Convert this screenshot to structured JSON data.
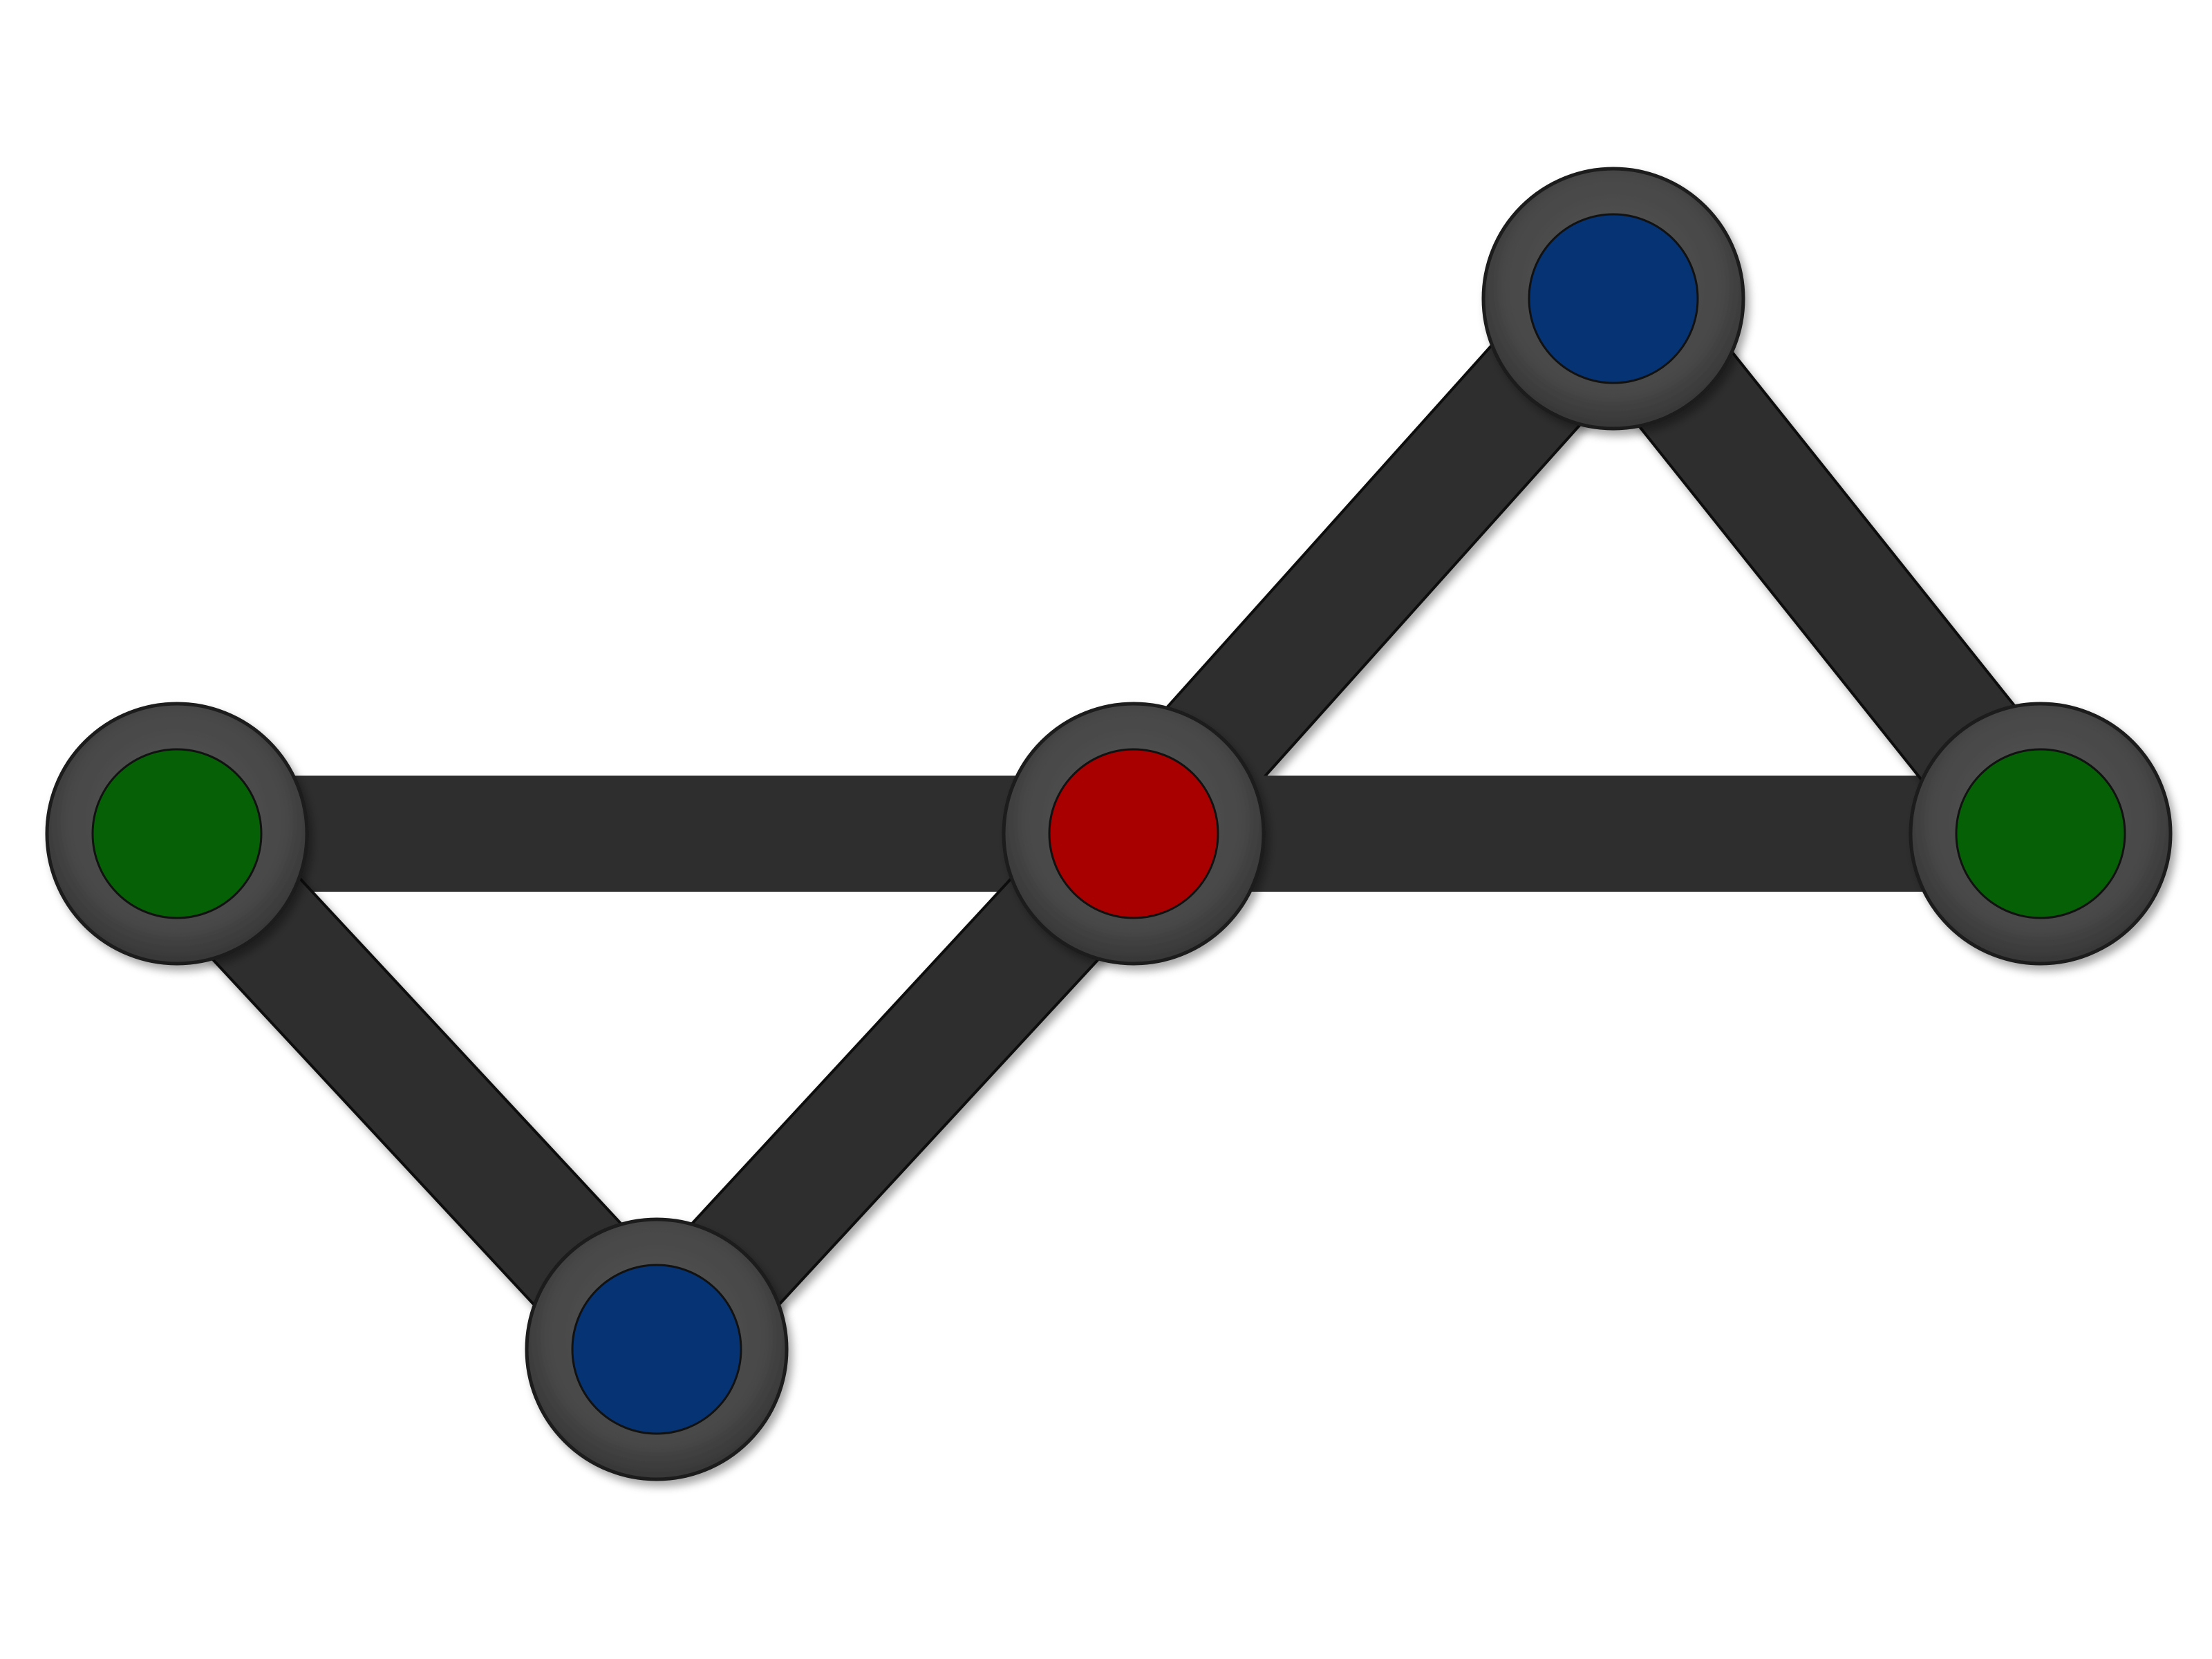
{
  "graph": {
    "nodes": [
      {
        "id": "n-left",
        "color_name": "green",
        "color": "#066006"
      },
      {
        "id": "n-bottom",
        "color_name": "blue",
        "color": "#063373"
      },
      {
        "id": "n-center",
        "color_name": "red",
        "color": "#a80000"
      },
      {
        "id": "n-top",
        "color_name": "blue",
        "color": "#063373"
      },
      {
        "id": "n-right",
        "color_name": "green",
        "color": "#066006"
      }
    ],
    "edges": [
      {
        "from": "n-left",
        "to": "n-center"
      },
      {
        "from": "n-left",
        "to": "n-bottom"
      },
      {
        "from": "n-bottom",
        "to": "n-center"
      },
      {
        "from": "n-center",
        "to": "n-top"
      },
      {
        "from": "n-center",
        "to": "n-right"
      },
      {
        "from": "n-top",
        "to": "n-right"
      }
    ],
    "style": {
      "edge_color": "#2e2e2e",
      "edge_outline": "#111111",
      "ring_color": "#474747",
      "ring_edge": "#1a1a1a",
      "background": "#ffffff"
    }
  }
}
